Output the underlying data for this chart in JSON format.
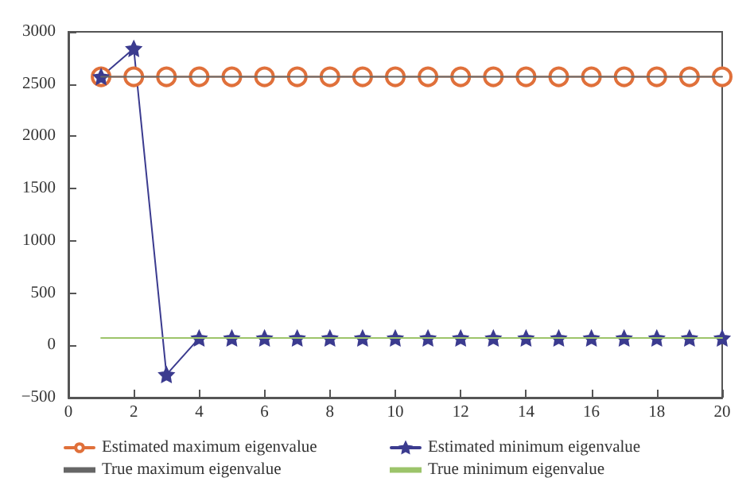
{
  "chart_data": {
    "type": "line",
    "x": [
      1,
      2,
      3,
      4,
      5,
      6,
      7,
      8,
      9,
      10,
      11,
      12,
      13,
      14,
      15,
      16,
      17,
      18,
      19,
      20
    ],
    "xlim": [
      0,
      20
    ],
    "xticks": [
      0,
      2,
      4,
      6,
      8,
      10,
      12,
      14,
      16,
      18,
      20
    ],
    "ylim": [
      -500,
      3000
    ],
    "yticks": [
      -500,
      0,
      500,
      1000,
      1500,
      2000,
      2500,
      3000
    ],
    "grid": false,
    "legend": "bottom",
    "series": [
      {
        "name": "Estimated maximum eigenvalue",
        "color": "#e0703a",
        "marker": "circle",
        "values": [
          2570,
          2570,
          2570,
          2570,
          2570,
          2570,
          2570,
          2570,
          2570,
          2570,
          2570,
          2570,
          2570,
          2570,
          2570,
          2570,
          2570,
          2570,
          2570,
          2570
        ]
      },
      {
        "name": "Estimated minimum eigenvalue",
        "color": "#3b3b8f",
        "marker": "star",
        "values": [
          2570,
          2840,
          -280,
          70,
          70,
          70,
          70,
          70,
          70,
          70,
          70,
          70,
          70,
          70,
          70,
          70,
          70,
          70,
          70,
          70
        ]
      },
      {
        "name": "True maximum eigenvalue",
        "color": "#666666",
        "marker": "none",
        "values": [
          2570,
          2570,
          2570,
          2570,
          2570,
          2570,
          2570,
          2570,
          2570,
          2570,
          2570,
          2570,
          2570,
          2570,
          2570,
          2570,
          2570,
          2570,
          2570,
          2570
        ]
      },
      {
        "name": "True minimum eigenvalue",
        "color": "#9cc46a",
        "marker": "none",
        "values": [
          70,
          70,
          70,
          70,
          70,
          70,
          70,
          70,
          70,
          70,
          70,
          70,
          70,
          70,
          70,
          70,
          70,
          70,
          70,
          70
        ]
      }
    ]
  }
}
